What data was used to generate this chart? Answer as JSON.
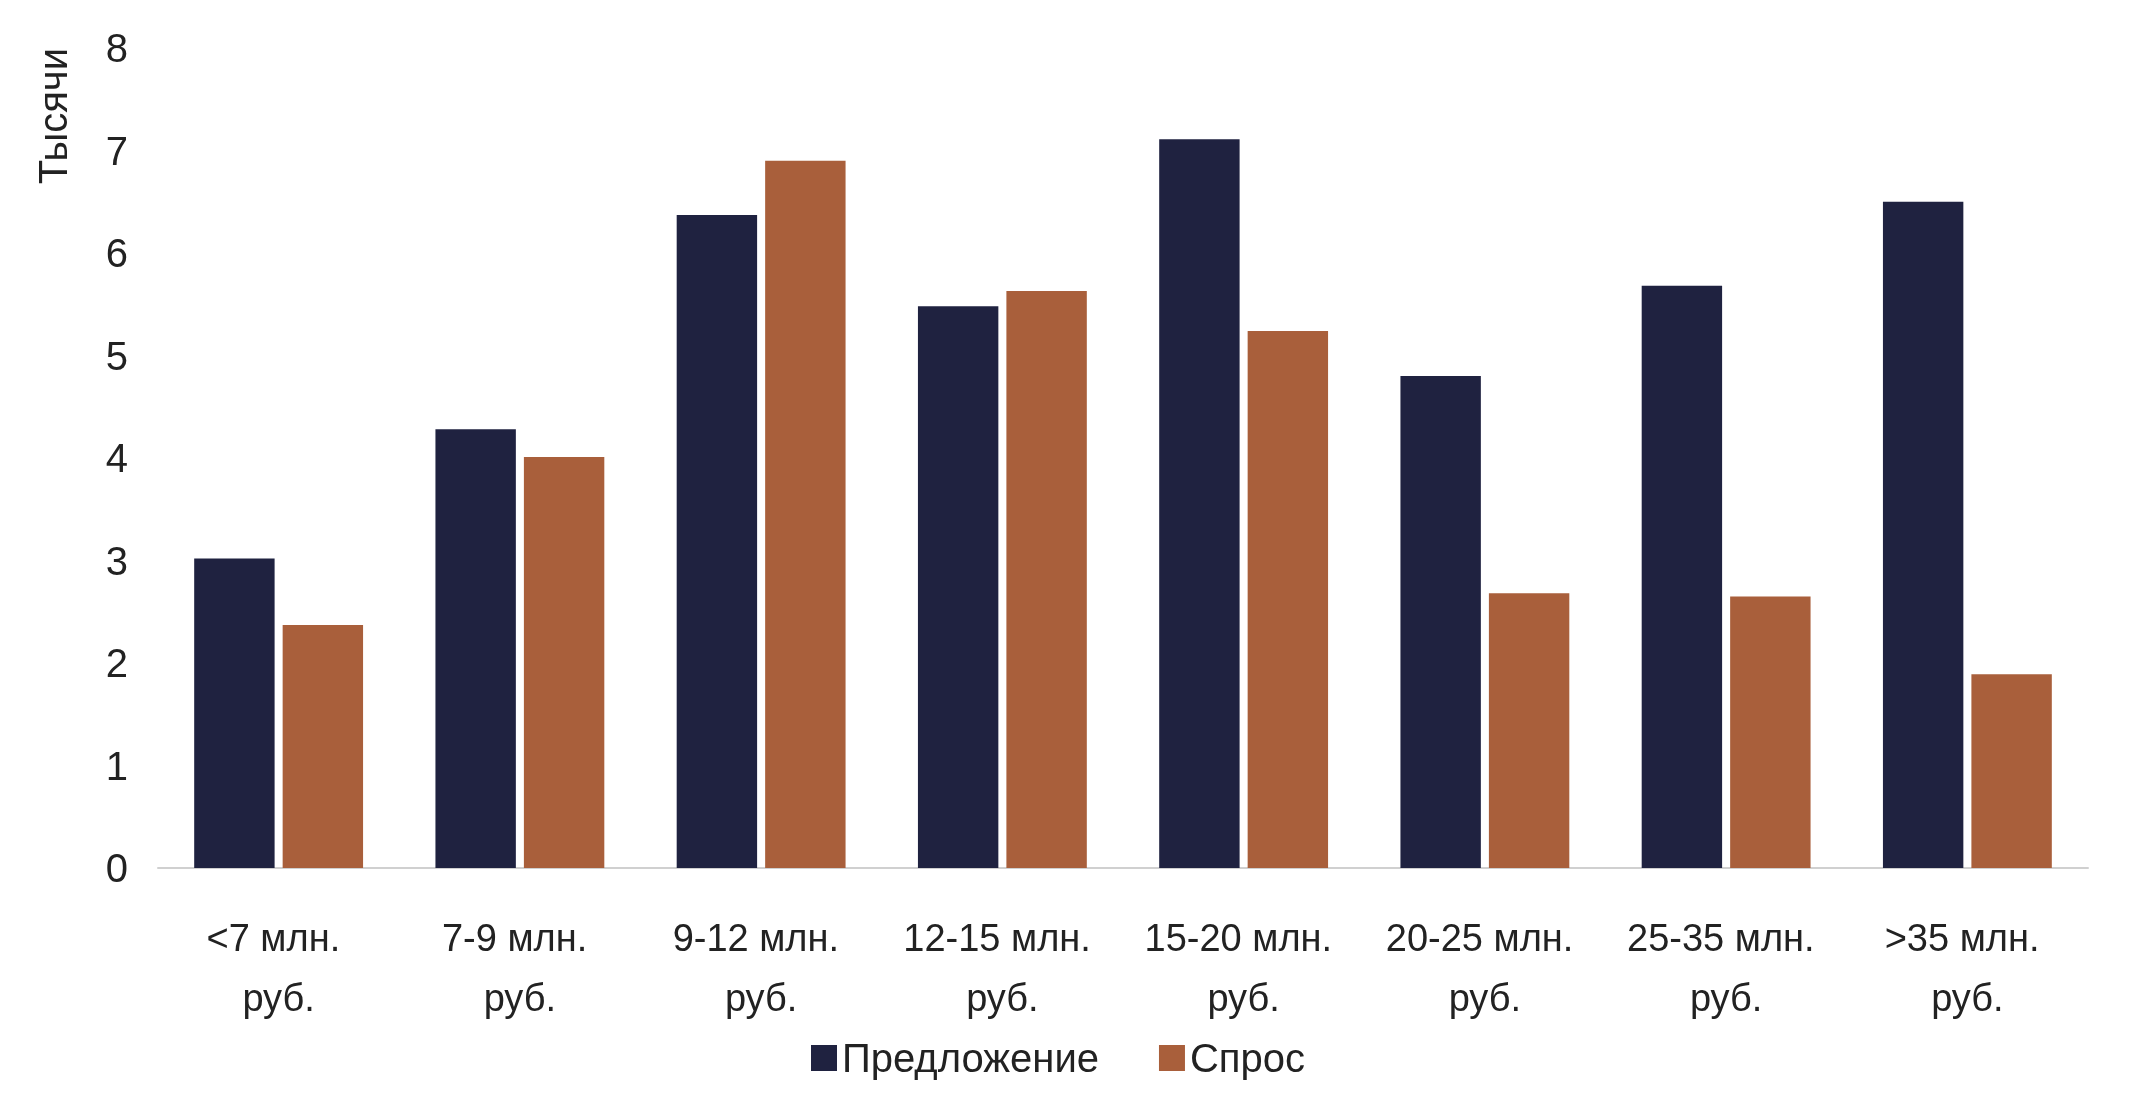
{
  "chart_data": {
    "type": "bar",
    "ylabel": "Тысячи",
    "categories": [
      "<7 млн. руб.",
      "7-9 млн. руб.",
      "9-12 млн. руб.",
      "12-15 млн. руб.",
      "15-20 млн. руб.",
      "20-25 млн. руб.",
      "25-35 млн. руб.",
      ">35 млн. руб."
    ],
    "series": [
      {
        "name": "Предложение",
        "color": "#1f2240",
        "values": [
          3.02,
          4.28,
          6.37,
          5.48,
          7.11,
          4.8,
          5.68,
          6.5
        ]
      },
      {
        "name": "Спрос",
        "color": "#a95f3b",
        "values": [
          2.37,
          4.01,
          6.9,
          5.63,
          5.24,
          2.68,
          2.65,
          1.89
        ]
      }
    ],
    "ylim": [
      0,
      8
    ],
    "yticks": [
      0,
      1,
      2,
      3,
      4,
      5,
      6,
      7,
      8
    ],
    "grid": false,
    "legend": "bottom"
  }
}
